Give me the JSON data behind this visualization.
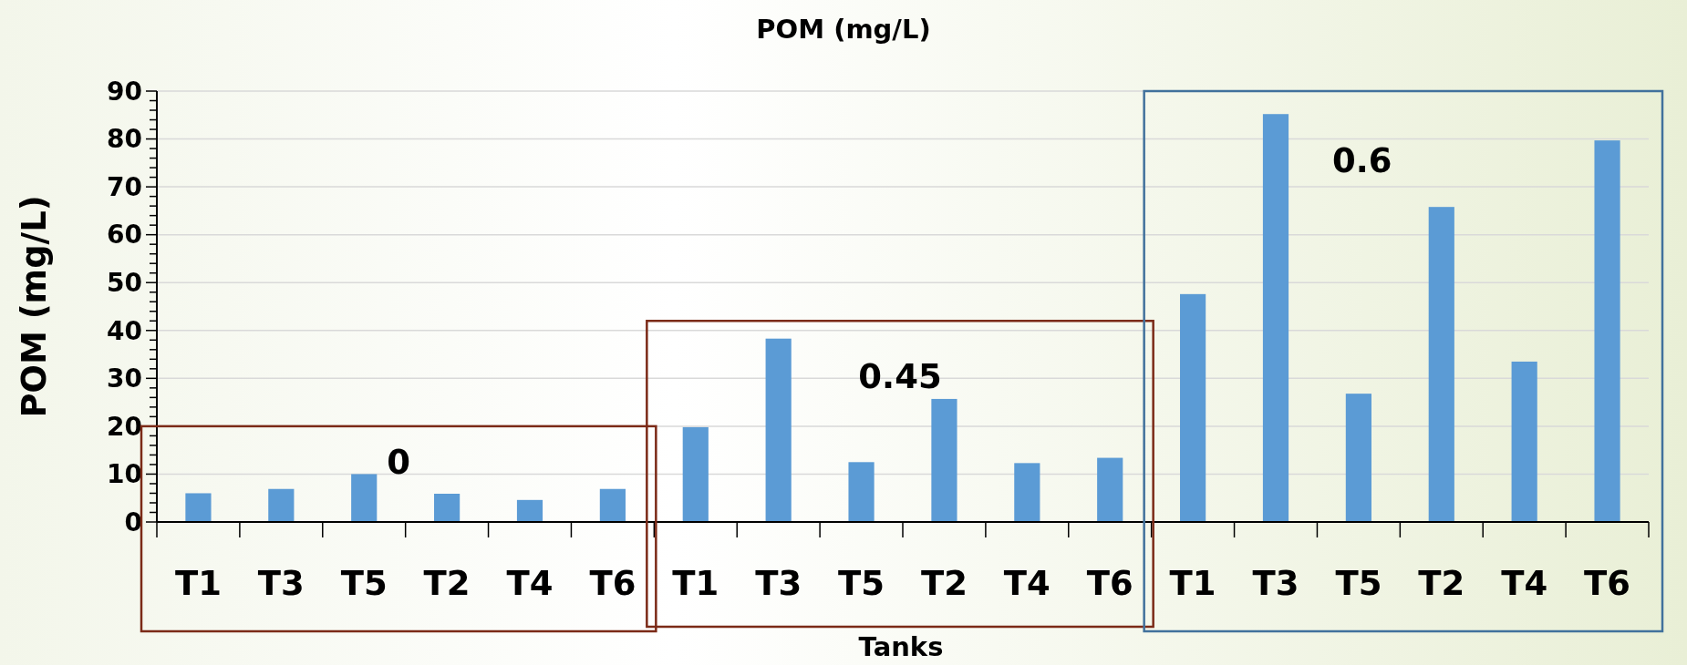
{
  "chart_data": {
    "type": "bar",
    "title": "POM (mg/L)",
    "xlabel": "Tanks",
    "ylabel": "POM (mg/L)",
    "categories": [
      "T1",
      "T3",
      "T5",
      "T2",
      "T4",
      "T6",
      "T1",
      "T3",
      "T5",
      "T2",
      "T4",
      "T6",
      "T1",
      "T3",
      "T5",
      "T2",
      "T4",
      "T6"
    ],
    "values": [
      6.0,
      6.9,
      10.0,
      5.9,
      4.6,
      6.9,
      19.8,
      38.3,
      12.5,
      25.7,
      12.3,
      13.4,
      47.6,
      85.2,
      26.8,
      65.8,
      33.5,
      79.7
    ],
    "color": "#5b9bd5",
    "ylim": [
      0,
      90
    ],
    "yticks": [
      0,
      {
        "value": 2,
        "label": null
      },
      {
        "value": 4,
        "label": null
      },
      {
        "value": 6,
        "label": null
      },
      {
        "value": 8,
        "label": null
      },
      10,
      {
        "value": 12,
        "label": null
      },
      {
        "value": 14,
        "label": null
      },
      {
        "value": 16,
        "label": null
      },
      {
        "value": 18,
        "label": null
      },
      20,
      {
        "value": 22,
        "label": null
      },
      {
        "value": 24,
        "label": null
      },
      {
        "value": 26,
        "label": null
      },
      {
        "value": 28,
        "label": null
      },
      30,
      {
        "value": 32,
        "label": null
      },
      {
        "value": 34,
        "label": null
      },
      {
        "value": 36,
        "label": null
      },
      {
        "value": 38,
        "label": null
      },
      40,
      {
        "value": 42,
        "label": null
      },
      {
        "value": 44,
        "label": null
      },
      {
        "value": 46,
        "label": null
      },
      {
        "value": 48,
        "label": null
      },
      50,
      {
        "value": 52,
        "label": null
      },
      {
        "value": 54,
        "label": null
      },
      {
        "value": 56,
        "label": null
      },
      {
        "value": 58,
        "label": null
      },
      60,
      {
        "value": 62,
        "label": null
      },
      {
        "value": 64,
        "label": null
      },
      {
        "value": 66,
        "label": null
      },
      {
        "value": 68,
        "label": null
      },
      70,
      {
        "value": 72,
        "label": null
      },
      {
        "value": 74,
        "label": null
      },
      {
        "value": 76,
        "label": null
      },
      {
        "value": 78,
        "label": null
      },
      80,
      {
        "value": 82,
        "label": null
      },
      {
        "value": 84,
        "label": null
      },
      {
        "value": 86,
        "label": null
      },
      {
        "value": 88,
        "label": null
      },
      90
    ],
    "grid": "y",
    "annotations": [
      "0",
      "0.45",
      "0.6"
    ]
  }
}
